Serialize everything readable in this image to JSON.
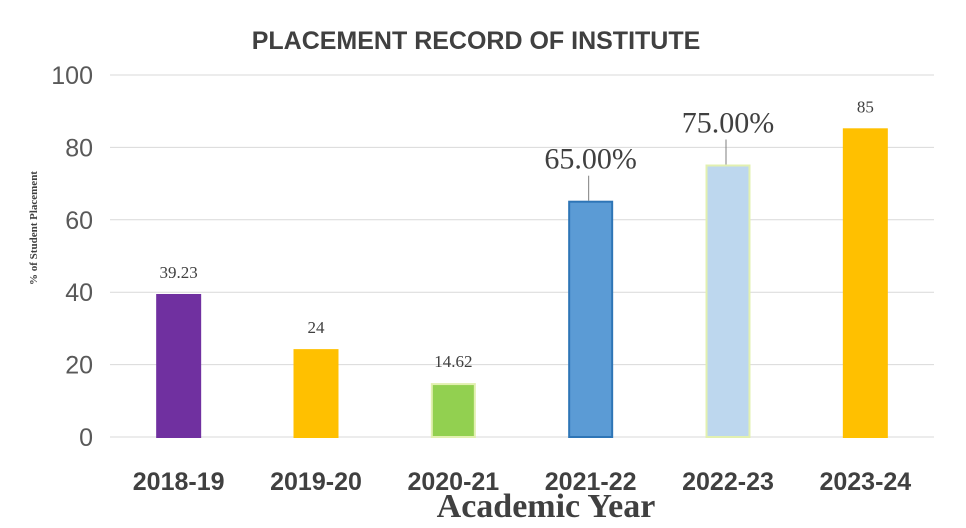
{
  "chart_data": {
    "type": "bar",
    "title": "PLACEMENT RECORD OF INSTITUTE",
    "xlabel": "Academic Year",
    "ylabel": "% of Student Placement",
    "ylim": [
      0,
      100
    ],
    "yticks": [
      "0",
      "20",
      "40",
      "60",
      "80",
      "100"
    ],
    "grid": true,
    "categories": [
      "2018-19",
      "2019-20",
      "2020-21",
      "2021-22",
      "2022-23",
      "2023-24"
    ],
    "values": [
      39.23,
      24,
      14.62,
      65,
      75,
      85
    ],
    "data_labels": [
      "39.23",
      "24",
      "14.62",
      "65.00%",
      "75.00%",
      "85"
    ],
    "colors": [
      "#7030a0",
      "#ffc000",
      "#92d050",
      "#5b9bd5",
      "#bdd7ee",
      "#ffc000"
    ],
    "border_colors": [
      "#7030a0",
      "#ffc000",
      "#e2f0b0",
      "#2e75b6",
      "#e2f0b0",
      "#ffc000"
    ]
  }
}
